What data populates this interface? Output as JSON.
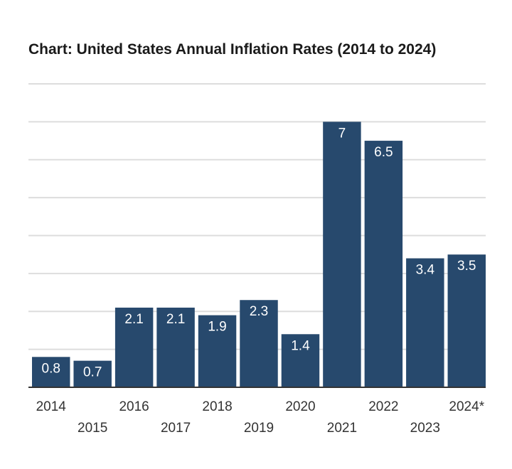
{
  "chart_data": {
    "type": "bar",
    "title": "Chart: United States Annual Inflation Rates (2014 to 2024)",
    "categories": [
      "2014",
      "2015",
      "2016",
      "2017",
      "2018",
      "2019",
      "2020",
      "2021",
      "2022",
      "2023",
      "2024"
    ],
    "category_display": [
      "2014",
      "2015",
      "2016",
      "2017",
      "2018",
      "2019",
      "2020",
      "2021",
      "2022",
      "2023",
      "2024*"
    ],
    "values": [
      0.8,
      0.7,
      2.1,
      2.1,
      1.9,
      2.3,
      1.4,
      7,
      6.5,
      3.4,
      3.5
    ],
    "value_labels": [
      "0.8",
      "0.7",
      "2.1",
      "2.1",
      "1.9",
      "2.3",
      "1.4",
      "7",
      "6.5",
      "3.4",
      "3.5"
    ],
    "xlabel": "",
    "ylabel": "",
    "ylim": [
      0,
      8
    ],
    "grid": true,
    "legend": "none",
    "bar_color": "#27496d",
    "grid_color": "#dddddd",
    "axis_color": "#333333"
  }
}
